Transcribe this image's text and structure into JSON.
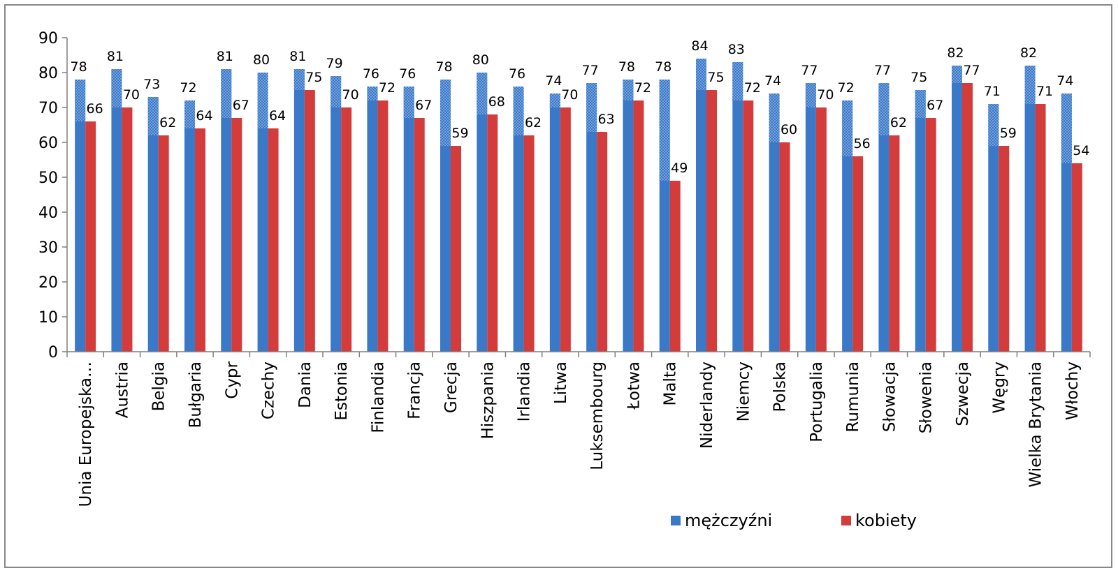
{
  "colors": {
    "men": "#3a78c8",
    "women": "#d43c3c",
    "grid": "#7f7f7f"
  },
  "chart_data": {
    "type": "bar",
    "categories": [
      "Unia Europejska…",
      "Austria",
      "Belgia",
      "Bułgaria",
      "Cypr",
      "Czechy",
      "Dania",
      "Estonia",
      "Finlandia",
      "Francja",
      "Grecja",
      "Hiszpania",
      "Irlandia",
      "Litwa",
      "Luksembourg",
      "Łotwa",
      "Malta",
      "Niderlandy",
      "Niemcy",
      "Polska",
      "Portugalia",
      "Rumunia",
      "Słowacja",
      "Słowenia",
      "Szwecja",
      "Węgry",
      "Wielka Brytania",
      "Włochy"
    ],
    "series": [
      {
        "name": "mężczyźni",
        "values": [
          78,
          81,
          73,
          72,
          81,
          80,
          81,
          79,
          76,
          76,
          78,
          80,
          76,
          74,
          77,
          78,
          78,
          84,
          83,
          74,
          77,
          72,
          77,
          75,
          82,
          71,
          82,
          74
        ]
      },
      {
        "name": "kobiety",
        "values": [
          66,
          70,
          62,
          64,
          67,
          64,
          75,
          70,
          72,
          67,
          59,
          68,
          62,
          70,
          63,
          72,
          49,
          75,
          72,
          60,
          70,
          56,
          62,
          67,
          77,
          59,
          71,
          54
        ]
      }
    ],
    "title": "",
    "xlabel": "",
    "ylabel": "",
    "ylim": [
      0,
      90
    ],
    "yticks": [
      0,
      10,
      20,
      30,
      40,
      50,
      60,
      70,
      80,
      90
    ],
    "grid": false,
    "legend": "bottom-right"
  }
}
